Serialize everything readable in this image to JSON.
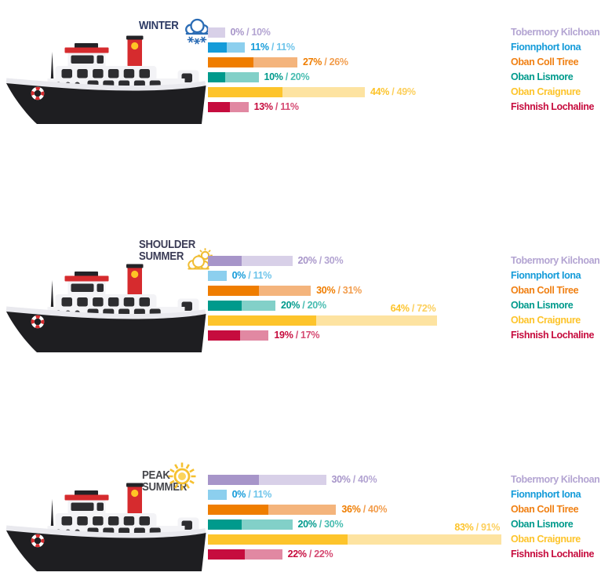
{
  "sep": " / ",
  "routes": [
    {
      "name": "Tobermory Kilchoan",
      "dark": "#a795c9",
      "light": "#d8d0e8",
      "name_color": "#b3a4d2",
      "val2_color": "#b3a4d2"
    },
    {
      "name": "Fionnphort Iona",
      "dark": "#149bd9",
      "light": "#8ccfee",
      "name_color": "#149bd9",
      "val2_color": "#6ec4ea"
    },
    {
      "name": "Oban Coll Tiree",
      "dark": "#ef7d00",
      "light": "#f4b47c",
      "name_color": "#f08013",
      "val2_color": "#f29d4d"
    },
    {
      "name": "Oban Lismore",
      "dark": "#009a8c",
      "light": "#82d0c8",
      "name_color": "#009a8c",
      "val2_color": "#47bcb0"
    },
    {
      "name": "Oban Craignure",
      "dark": "#fdc42b",
      "light": "#fde3a1",
      "name_color": "#fdc42b",
      "val2_color": "#fccf5c"
    },
    {
      "name": "Fishnish Lochaline",
      "dark": "#c60c3e",
      "light": "#e188a2",
      "name_color": "#c60c3e",
      "val2_color": "#d54a72"
    }
  ],
  "seasons": [
    {
      "name": "WINTER",
      "title_lines": [
        "WINTER"
      ],
      "title_color": "#2c3a64",
      "icon": "snow-cloud-icon",
      "rows": [
        {
          "v1": "0%",
          "v2": "10%"
        },
        {
          "v1": "11%",
          "v2": "11%"
        },
        {
          "v1": "27%",
          "v2": "26%"
        },
        {
          "v1": "10%",
          "v2": "20%"
        },
        {
          "v1": "44%",
          "v2": "49%"
        },
        {
          "v1": "13%",
          "v2": "11%"
        }
      ]
    },
    {
      "name": "SHOULDER SUMMER",
      "title_lines": [
        "SHOULDER",
        "SUMMER"
      ],
      "title_color": "#3a3b55",
      "icon": "sun-cloud-icon",
      "rows": [
        {
          "v1": "20%",
          "v2": "30%"
        },
        {
          "v1": "0%",
          "v2": "11%"
        },
        {
          "v1": "30%",
          "v2": "31%"
        },
        {
          "v1": "20%",
          "v2": "20%"
        },
        {
          "v1": "64%",
          "v2": "72%"
        },
        {
          "v1": "19%",
          "v2": "17%"
        }
      ]
    },
    {
      "name": "PEAK SUMMER",
      "title_lines": [
        "PEAK",
        "SUMMER"
      ],
      "title_color": "#45464b",
      "icon": "sun-icon",
      "rows": [
        {
          "v1": "30%",
          "v2": "40%"
        },
        {
          "v1": "0%",
          "v2": "11%"
        },
        {
          "v1": "36%",
          "v2": "40%"
        },
        {
          "v1": "20%",
          "v2": "30%"
        },
        {
          "v1": "83%",
          "v2": "91%"
        },
        {
          "v1": "22%",
          "v2": "22%"
        }
      ]
    }
  ],
  "chart_data": {
    "type": "bar",
    "orientation": "horizontal",
    "unit": "percent",
    "categories": [
      "Tobermory Kilchoan",
      "Fionnphort Iona",
      "Oban Coll Tiree",
      "Oban Lismore",
      "Oban Craignure",
      "Fishnish Lochaline"
    ],
    "groups": [
      {
        "season": "WINTER",
        "series": [
          {
            "name": "value1-dark",
            "values": [
              0,
              11,
              27,
              10,
              44,
              13
            ]
          },
          {
            "name": "value2-light",
            "values": [
              10,
              11,
              26,
              20,
              49,
              11
            ]
          }
        ]
      },
      {
        "season": "SHOULDER SUMMER",
        "series": [
          {
            "name": "value1-dark",
            "values": [
              20,
              0,
              30,
              20,
              64,
              19
            ]
          },
          {
            "name": "value2-light",
            "values": [
              30,
              11,
              31,
              20,
              72,
              17
            ]
          }
        ]
      },
      {
        "season": "PEAK SUMMER",
        "series": [
          {
            "name": "value1-dark",
            "values": [
              30,
              0,
              36,
              20,
              83,
              22
            ]
          },
          {
            "name": "value2-light",
            "values": [
              40,
              11,
              40,
              30,
              91,
              22
            ]
          }
        ]
      }
    ],
    "value_label_format": "v1% / v2%",
    "legend_position": "right",
    "grid": false,
    "xlim": [
      0,
      174
    ]
  }
}
